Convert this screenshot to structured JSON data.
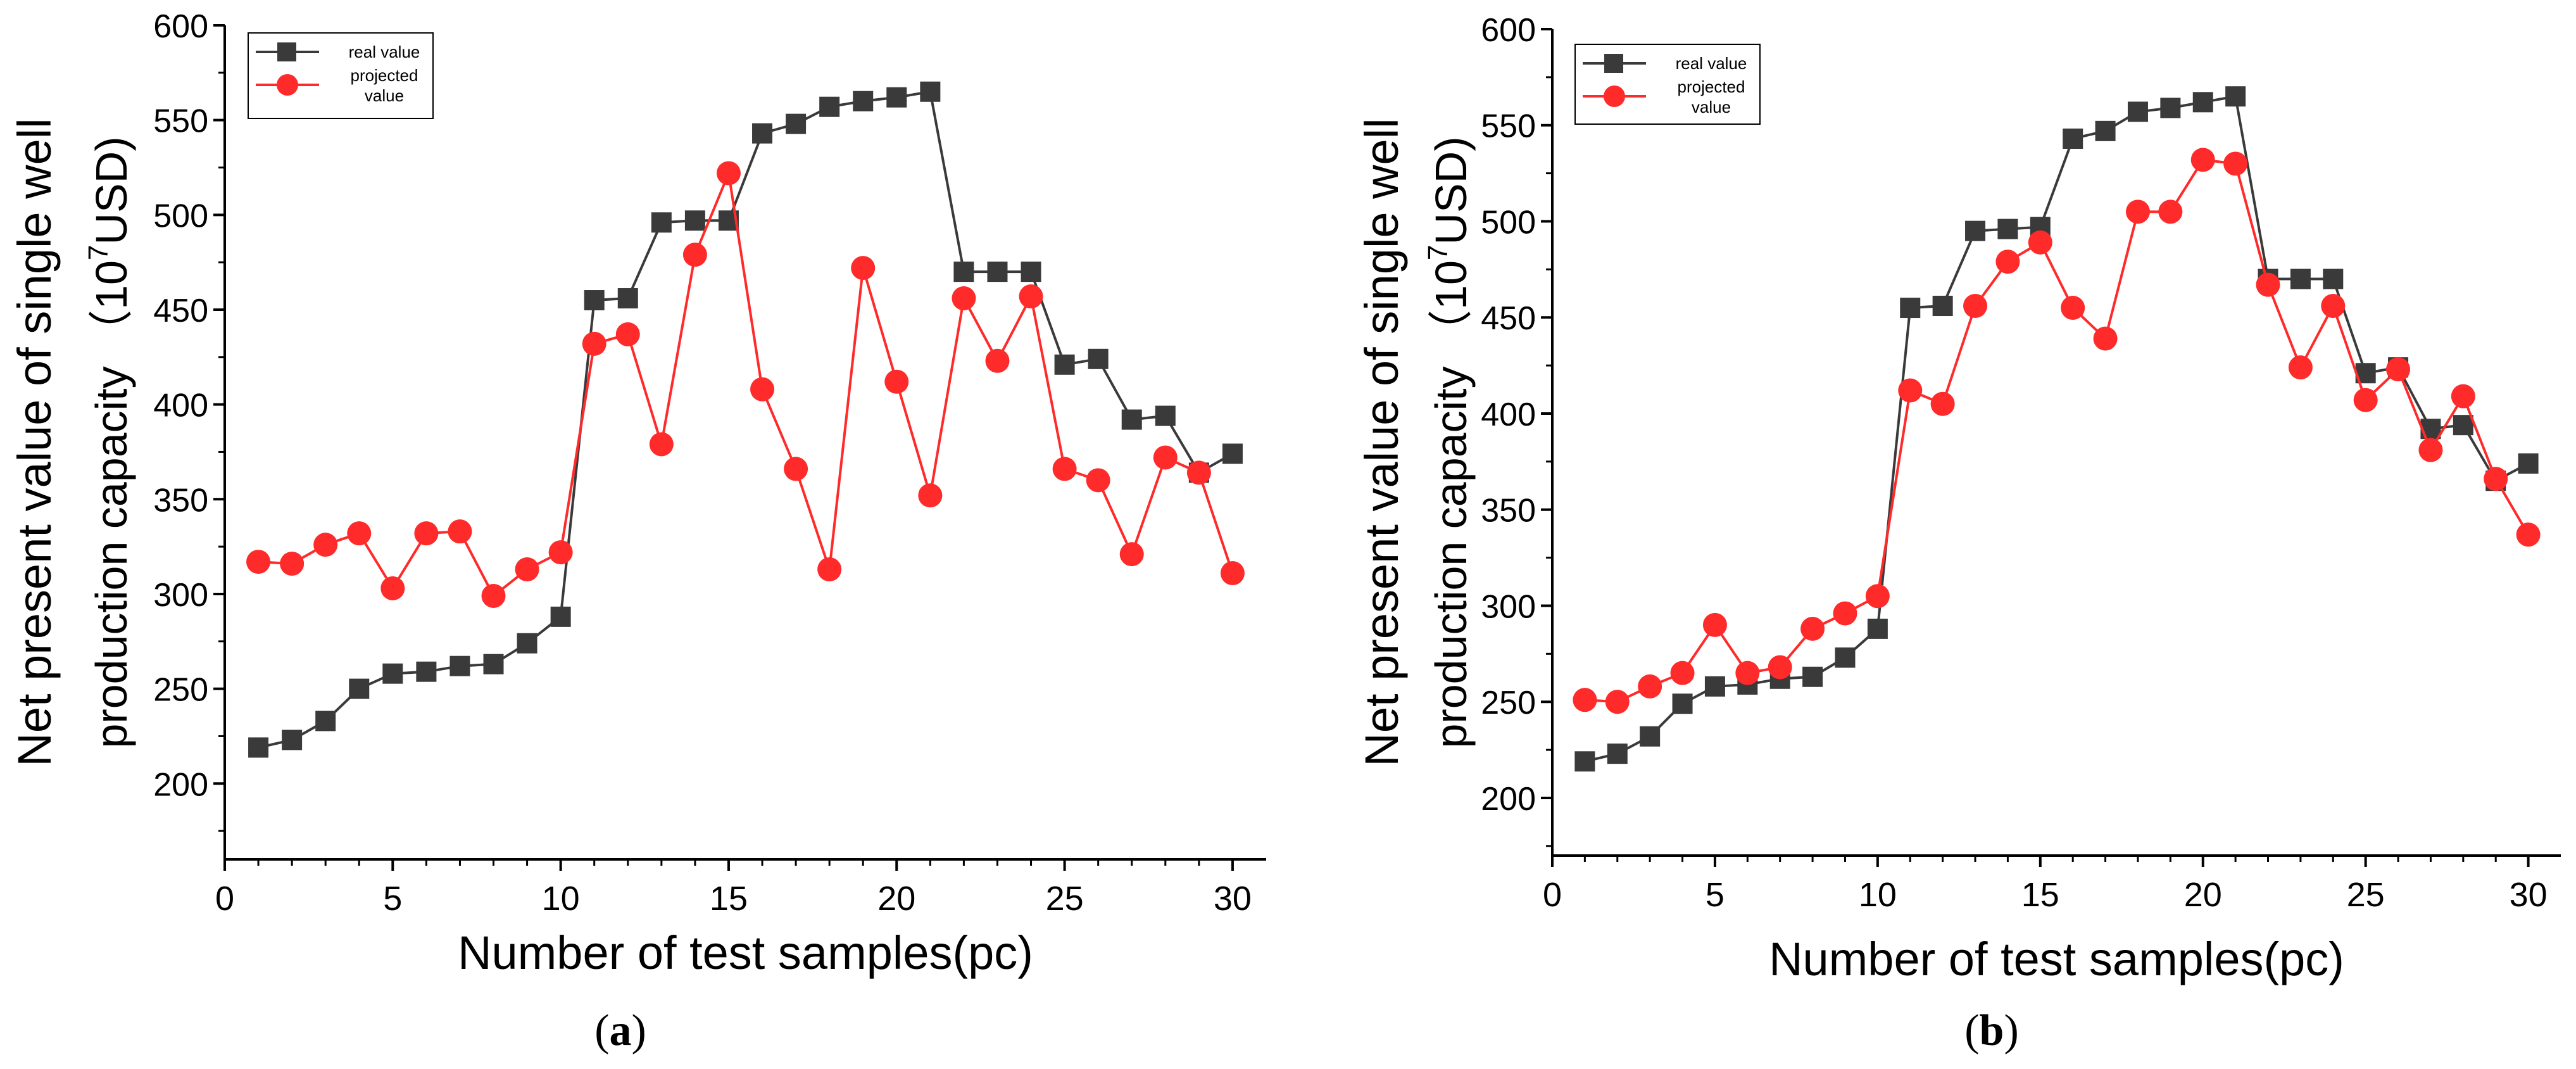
{
  "chart_data": [
    {
      "type": "line",
      "panel_label": "(a)",
      "xlabel": "Number of test samples(pc)",
      "ylabel_line1": "Net present value of single well",
      "ylabel_line2": "production capacity （10",
      "ylabel_sup": "7",
      "ylabel_unit": "USD)",
      "xlim": [
        0,
        31
      ],
      "ylim": [
        160,
        600
      ],
      "xticks": [
        0,
        5,
        10,
        15,
        20,
        25,
        30
      ],
      "yticks": [
        200,
        250,
        300,
        350,
        400,
        450,
        500,
        550,
        600
      ],
      "legend_position": "top-left",
      "grid": false,
      "x": [
        1,
        2,
        3,
        4,
        5,
        6,
        7,
        8,
        9,
        10,
        11,
        12,
        13,
        14,
        15,
        16,
        17,
        18,
        19,
        20,
        21,
        22,
        23,
        24,
        25,
        26,
        27,
        28,
        29,
        30
      ],
      "series": [
        {
          "name": "real value",
          "color": "#3a3a3a",
          "marker": "square",
          "values": [
            219,
            223,
            233,
            250,
            258,
            259,
            262,
            263,
            274,
            288,
            455,
            456,
            496,
            497,
            497,
            543,
            548,
            557,
            560,
            562,
            565,
            470,
            470,
            470,
            421,
            424,
            392,
            394,
            364,
            374
          ]
        },
        {
          "name": "projected value",
          "color": "#ff2a2a",
          "marker": "circle",
          "values": [
            317,
            316,
            326,
            332,
            303,
            332,
            333,
            299,
            313,
            322,
            432,
            437,
            379,
            479,
            522,
            408,
            366,
            313,
            472,
            412,
            352,
            456,
            423,
            457,
            366,
            360,
            321,
            372,
            364,
            311
          ]
        }
      ]
    },
    {
      "type": "line",
      "panel_label": "(b)",
      "xlabel": "Number of test samples(pc)",
      "ylabel_line1": "Net present value of single well",
      "ylabel_line2": "production capacity （10",
      "ylabel_sup": "7",
      "ylabel_unit": "USD)",
      "xlim": [
        0,
        31
      ],
      "ylim": [
        170,
        600
      ],
      "xticks": [
        0,
        5,
        10,
        15,
        20,
        25,
        30
      ],
      "yticks": [
        200,
        250,
        300,
        350,
        400,
        450,
        500,
        550,
        600
      ],
      "legend_position": "top-left",
      "grid": false,
      "x": [
        1,
        2,
        3,
        4,
        5,
        6,
        7,
        8,
        9,
        10,
        11,
        12,
        13,
        14,
        15,
        16,
        17,
        18,
        19,
        20,
        21,
        22,
        23,
        24,
        25,
        26,
        27,
        28,
        29,
        30
      ],
      "series": [
        {
          "name": "real value",
          "color": "#3a3a3a",
          "marker": "square",
          "values": [
            219,
            223,
            232,
            249,
            258,
            259,
            262,
            263,
            273,
            288,
            455,
            456,
            495,
            496,
            497,
            543,
            547,
            557,
            559,
            562,
            565,
            470,
            470,
            470,
            421,
            424,
            392,
            394,
            365,
            374
          ]
        },
        {
          "name": "projected value",
          "color": "#ff2a2a",
          "marker": "circle",
          "values": [
            251,
            250,
            258,
            265,
            290,
            265,
            268,
            288,
            296,
            305,
            412,
            405,
            456,
            479,
            489,
            455,
            439,
            505,
            505,
            532,
            530,
            467,
            424,
            456,
            407,
            423,
            381,
            409,
            366,
            337
          ]
        }
      ]
    }
  ]
}
